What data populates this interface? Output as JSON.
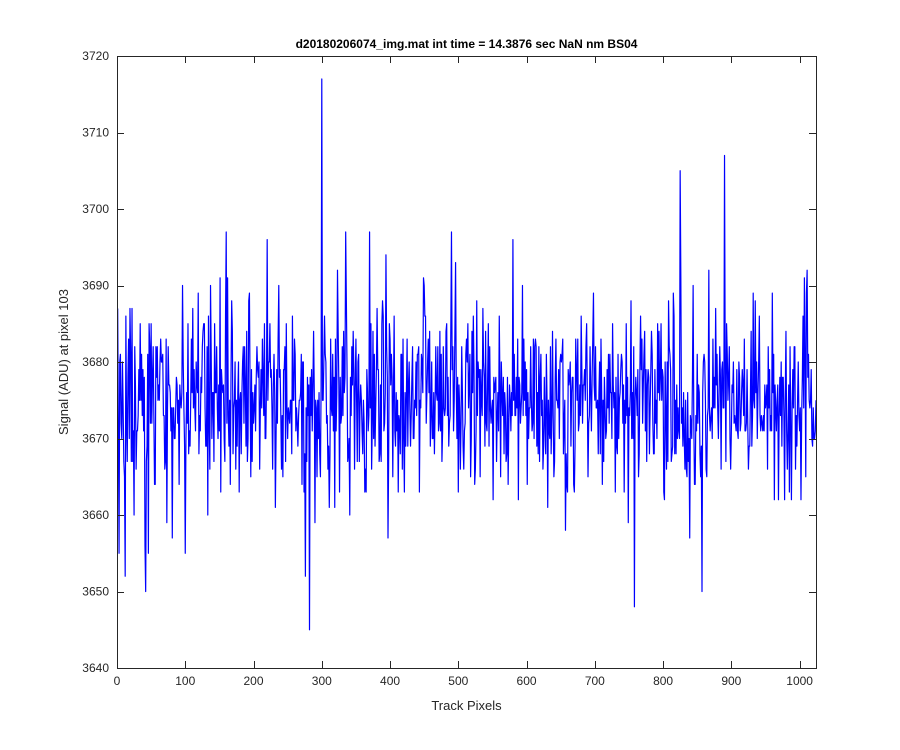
{
  "chart_data": {
    "type": "line",
    "title": "d20180206074_img.mat int time = 14.3876 sec  NaN nm BS04",
    "xlabel": "Track Pixels",
    "ylabel": "Signal (ADU) at pixel 103",
    "xlim": [
      0,
      1024
    ],
    "ylim": [
      3640,
      3720
    ],
    "xticks": [
      0,
      100,
      200,
      300,
      400,
      500,
      600,
      700,
      800,
      900,
      1000
    ],
    "yticks": [
      3640,
      3650,
      3660,
      3670,
      3680,
      3690,
      3700,
      3710,
      3720
    ],
    "grid": false,
    "line_color": "#0000ff",
    "series": [
      {
        "x_start": 1,
        "x_step": 1,
        "mean": 3675,
        "sd": 6.5,
        "n": 1024,
        "peaks": [
          {
            "x": 3,
            "y": 3655
          },
          {
            "x": 12,
            "y": 3652
          },
          {
            "x": 42,
            "y": 3650
          },
          {
            "x": 100,
            "y": 3655
          },
          {
            "x": 160,
            "y": 3697
          },
          {
            "x": 220,
            "y": 3696
          },
          {
            "x": 276,
            "y": 3652
          },
          {
            "x": 282,
            "y": 3645
          },
          {
            "x": 300,
            "y": 3717
          },
          {
            "x": 335,
            "y": 3697
          },
          {
            "x": 370,
            "y": 3697
          },
          {
            "x": 490,
            "y": 3697
          },
          {
            "x": 580,
            "y": 3696
          },
          {
            "x": 758,
            "y": 3648
          },
          {
            "x": 825,
            "y": 3705
          },
          {
            "x": 857,
            "y": 3650
          },
          {
            "x": 890,
            "y": 3707
          }
        ]
      }
    ]
  }
}
